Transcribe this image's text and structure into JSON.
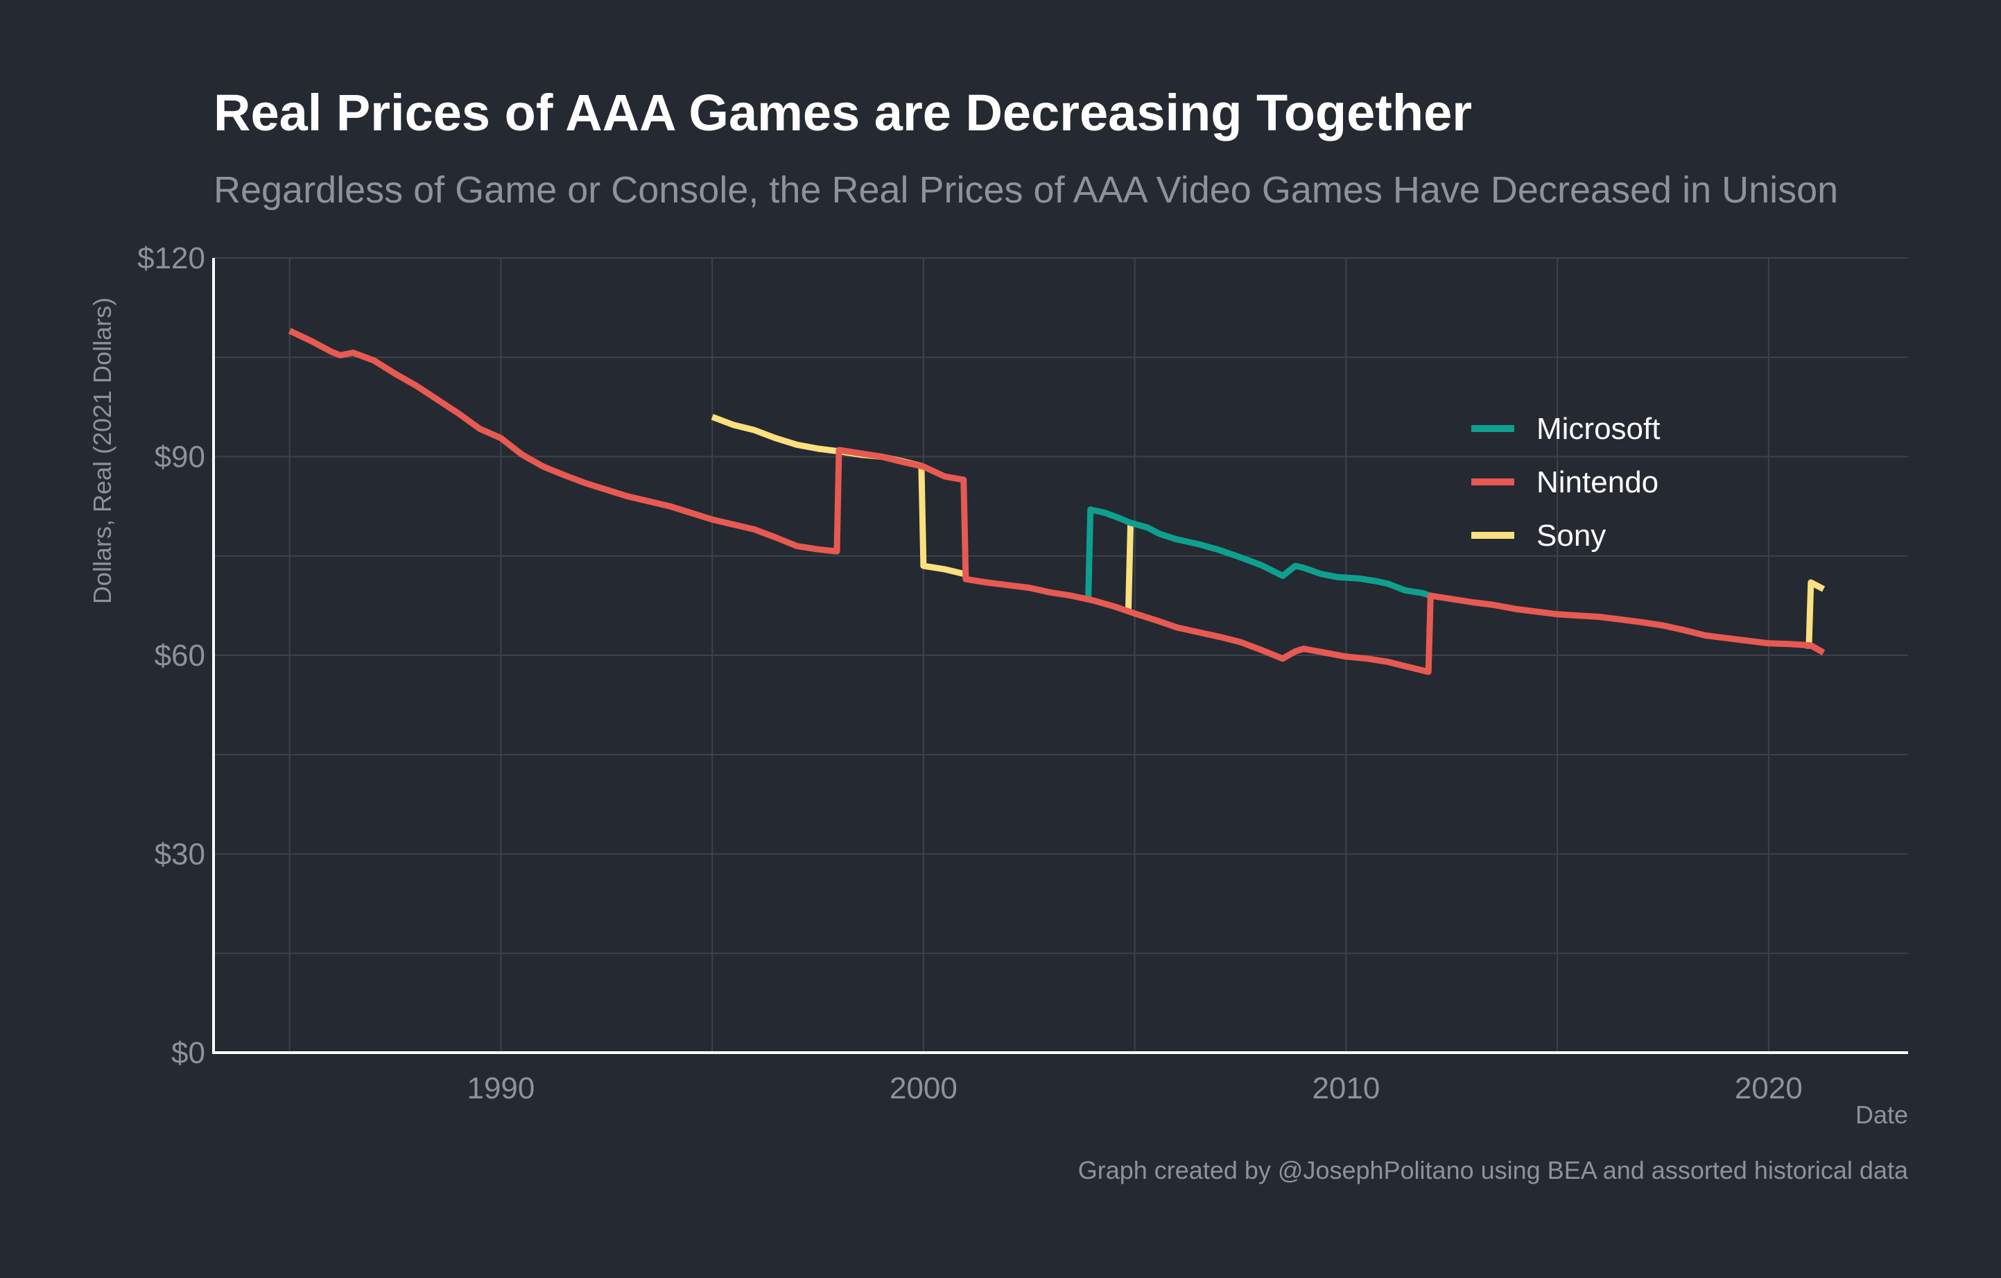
{
  "chart_data": {
    "type": "line",
    "title": "Real Prices of AAA Games are Decreasing Together",
    "subtitle": "Regardless of Game or Console, the Real Prices of AAA Video Games Have Decreased in Unison",
    "xlabel": "Date",
    "ylabel": "Dollars, Real (2021 Dollars)",
    "caption": "Graph created by @JosephPolitano using BEA and assorted historical data",
    "xlim": [
      1983.2,
      2023.3
    ],
    "ylim": [
      0,
      120
    ],
    "x_ticks": [
      1990,
      2000,
      2010,
      2020
    ],
    "x_tick_labels": [
      "1990",
      "2000",
      "2010",
      "2020"
    ],
    "y_ticks": [
      0,
      30,
      60,
      90,
      120
    ],
    "y_tick_labels": [
      "$0",
      "$30",
      "$60",
      "$90",
      "$120"
    ],
    "grid": true,
    "legend_position": "top-right",
    "series": [
      {
        "name": "Microsoft",
        "color": "#0f9f8f",
        "x": [
          2003.9,
          2003.95,
          2004.3,
          2004.6,
          2004.9,
          2005.3,
          2005.6,
          2006.0,
          2006.5,
          2007.0,
          2007.5,
          2008.0,
          2008.5,
          2008.8,
          2009.0,
          2009.4,
          2009.8,
          2010.3,
          2010.7,
          2011.0,
          2011.4,
          2011.8,
          2012.0
        ],
        "values": [
          68.5,
          82,
          81.5,
          80.8,
          80.0,
          79.3,
          78.3,
          77.5,
          76.8,
          75.9,
          74.8,
          73.6,
          72.0,
          73.5,
          73.2,
          72.3,
          71.8,
          71.6,
          71.2,
          70.8,
          69.8,
          69.4,
          69.0
        ]
      },
      {
        "name": "Nintendo",
        "color": "#e65a52",
        "x": [
          1985.0,
          1985.5,
          1986.0,
          1986.2,
          1986.5,
          1987.0,
          1987.5,
          1988.0,
          1988.5,
          1989.0,
          1989.5,
          1990.0,
          1990.5,
          1991.0,
          1991.5,
          1992.0,
          1993.0,
          1994.0,
          1995.0,
          1996.0,
          1996.5,
          1997.0,
          1997.5,
          1997.95,
          1998.0,
          1998.5,
          1999.0,
          1999.5,
          2000.0,
          2000.5,
          2000.95,
          2001.0,
          2001.5,
          2002.0,
          2002.5,
          2003.0,
          2003.5,
          2004.0,
          2004.5,
          2005.0,
          2005.5,
          2006.0,
          2006.5,
          2007.0,
          2007.5,
          2008.0,
          2008.5,
          2008.8,
          2009.0,
          2009.5,
          2010.0,
          2010.5,
          2011.0,
          2011.5,
          2011.95,
          2012.0,
          2012.5,
          2013.0,
          2013.5,
          2014.0,
          2014.5,
          2015.0,
          2015.5,
          2016.0,
          2016.5,
          2017.0,
          2017.5,
          2018.0,
          2018.5,
          2019.0,
          2019.5,
          2020.0,
          2020.5,
          2021.0,
          2021.3
        ],
        "values": [
          109,
          107.5,
          105.8,
          105.3,
          105.7,
          104.5,
          102.5,
          100.7,
          98.6,
          96.5,
          94.2,
          92.8,
          90.3,
          88.5,
          87.2,
          86.0,
          84.0,
          82.5,
          80.5,
          79.0,
          77.8,
          76.5,
          76.0,
          75.7,
          91.0,
          90.5,
          90.0,
          89.2,
          88.5,
          87.0,
          86.5,
          71.5,
          71.0,
          70.6,
          70.2,
          69.5,
          69.0,
          68.3,
          67.4,
          66.3,
          65.3,
          64.2,
          63.5,
          62.8,
          62.0,
          60.8,
          59.5,
          60.6,
          61.0,
          60.4,
          59.8,
          59.5,
          59.0,
          58.2,
          57.5,
          69.0,
          68.5,
          68.0,
          67.6,
          67.0,
          66.6,
          66.2,
          66.0,
          65.8,
          65.4,
          65.0,
          64.5,
          63.8,
          63.0,
          62.6,
          62.2,
          61.8,
          61.7,
          61.5,
          60.4
        ]
      },
      {
        "name": "Sony",
        "color": "#fbe07f",
        "segments": [
          {
            "x": [
              1995.0,
              1995.5,
              1996.0,
              1996.5,
              1997.0,
              1997.5,
              1998.0,
              1998.5,
              1999.0,
              1999.5,
              1999.95,
              2000.0,
              2000.5,
              2000.95
            ],
            "values": [
              96.0,
              94.8,
              94.0,
              92.8,
              91.8,
              91.2,
              90.8,
              90.3,
              90.0,
              89.3,
              88.6,
              73.5,
              73.0,
              72.3
            ]
          },
          {
            "x": [
              2004.85,
              2004.9
            ],
            "values": [
              67.0,
              80.0
            ]
          },
          {
            "x": [
              2020.95,
              2021.0,
              2021.3
            ],
            "values": [
              61.0,
              71.0,
              70.0
            ]
          }
        ]
      }
    ]
  }
}
